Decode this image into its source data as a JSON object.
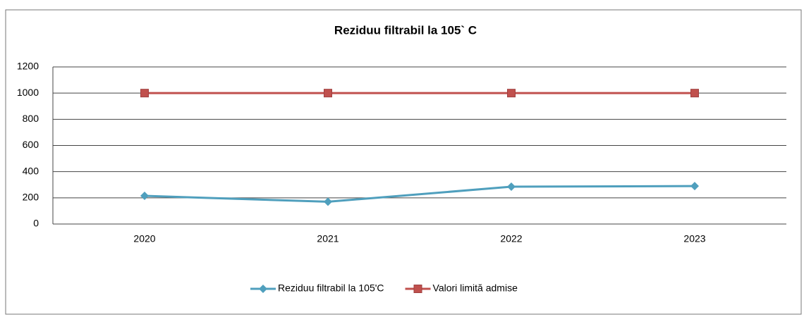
{
  "chart_data": {
    "type": "line",
    "title": "Reziduu filtrabil la 105` C",
    "categories": [
      "2020",
      "2021",
      "2022",
      "2023"
    ],
    "series": [
      {
        "name": "Reziduu filtrabil la 105'C",
        "color": "#4f9fbd",
        "marker": "diamond",
        "values": [
          215,
          170,
          285,
          290
        ]
      },
      {
        "name": "Valori limită admise",
        "color": "#c0504d",
        "marker": "square",
        "values": [
          1000,
          1000,
          1000,
          1000
        ]
      }
    ],
    "ylim": [
      0,
      1200
    ],
    "yticks": [
      0,
      200,
      400,
      600,
      800,
      1000,
      1200
    ],
    "grid": true,
    "legend": "bottom"
  }
}
